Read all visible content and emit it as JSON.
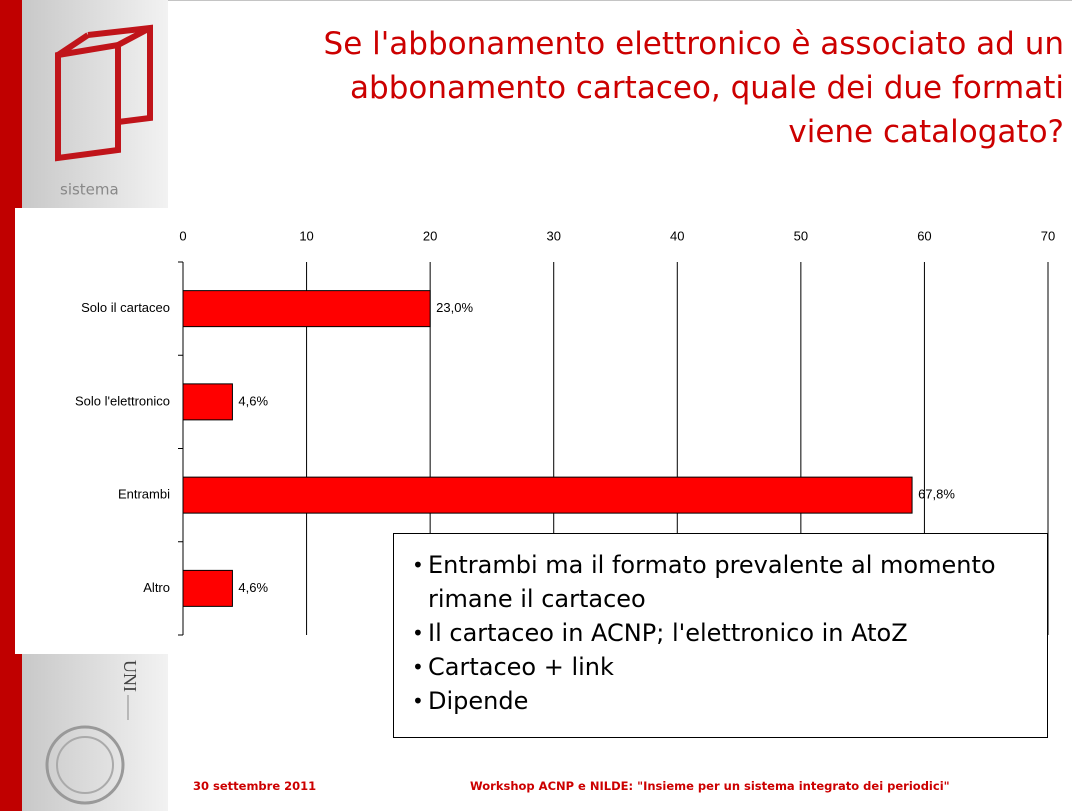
{
  "slide": {
    "title_lines": [
      "Se l'abbonamento elettronico è associato ad un",
      "abbonamento cartaceo, quale dei due formati",
      "viene catalogato?"
    ],
    "logo_texts": [
      "sistema",
      "UNI"
    ],
    "bullets": [
      "Entrambi ma il formato prevalente al momento rimane il cartaceo",
      "Il cartaceo in ACNP; l'elettronico in AtoZ",
      "Cartaceo + link",
      "Dipende"
    ],
    "footer_date": "30 settembre 2011",
    "footer_event": "Workshop ACNP e NILDE: \"Insieme per un sistema integrato dei periodici\""
  },
  "chart_data": {
    "type": "bar",
    "orientation": "horizontal",
    "categories": [
      "Solo il cartaceo",
      "Solo l'elettronico",
      "Entrambi",
      "Altro"
    ],
    "values": [
      20,
      4,
      59,
      4
    ],
    "value_labels": [
      "23,0%",
      "4,6%",
      "67,8%",
      "4,6%"
    ],
    "color": "#ff0000",
    "xlim": [
      0,
      70
    ],
    "xticks": [
      0,
      10,
      20,
      30,
      40,
      50,
      60,
      70
    ],
    "grid": true
  }
}
